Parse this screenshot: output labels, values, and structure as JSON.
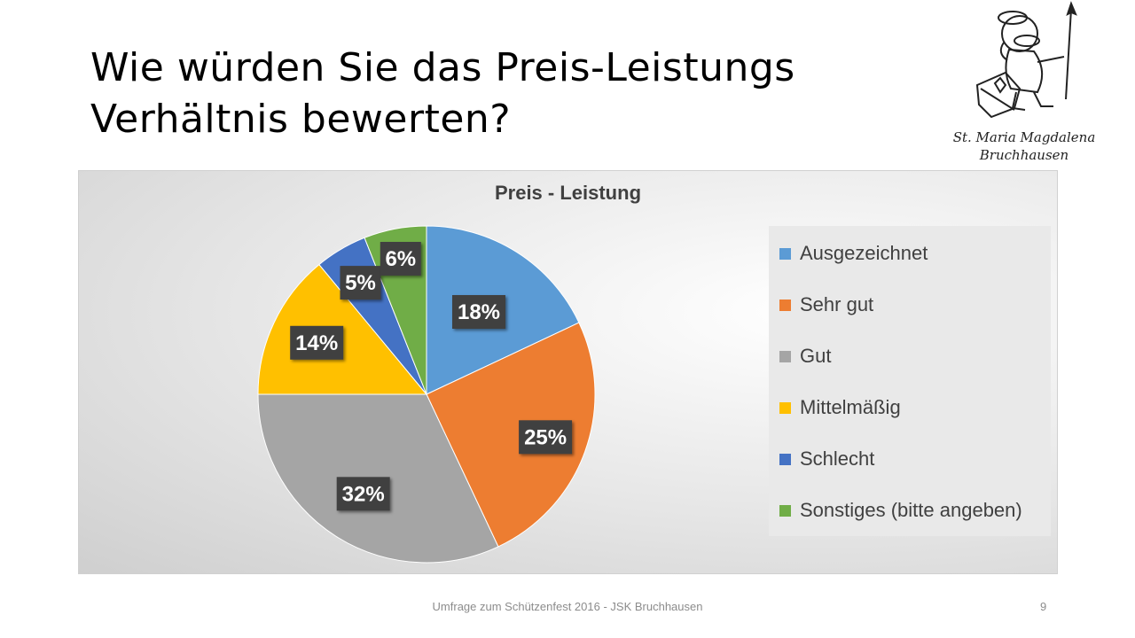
{
  "slide": {
    "title_line1": "Wie würden Sie das Preis-Leistungs",
    "title_line2": "Verhältnis bewerten?",
    "footer": "Umfrage zum Schützenfest 2016 - JSK Bruchhausen",
    "page_number": "9"
  },
  "logo": {
    "line1": "St. Maria Magdalena",
    "line2": "Bruchhausen"
  },
  "chart_data": {
    "type": "pie",
    "title": "Preis - Leistung",
    "legend_position": "right",
    "categories": [
      "Ausgezeichnet",
      "Sehr gut",
      "Gut",
      "Mittelmäßig",
      "Schlecht",
      "Sonstiges (bitte angeben)"
    ],
    "values": [
      18,
      25,
      32,
      14,
      5,
      6
    ],
    "labels": [
      "18%",
      "25%",
      "32%",
      "14%",
      "5%",
      "6%"
    ],
    "colors": [
      "#5b9bd5",
      "#ed7d31",
      "#a5a5a5",
      "#ffc000",
      "#4472c4",
      "#70ad47"
    ]
  }
}
